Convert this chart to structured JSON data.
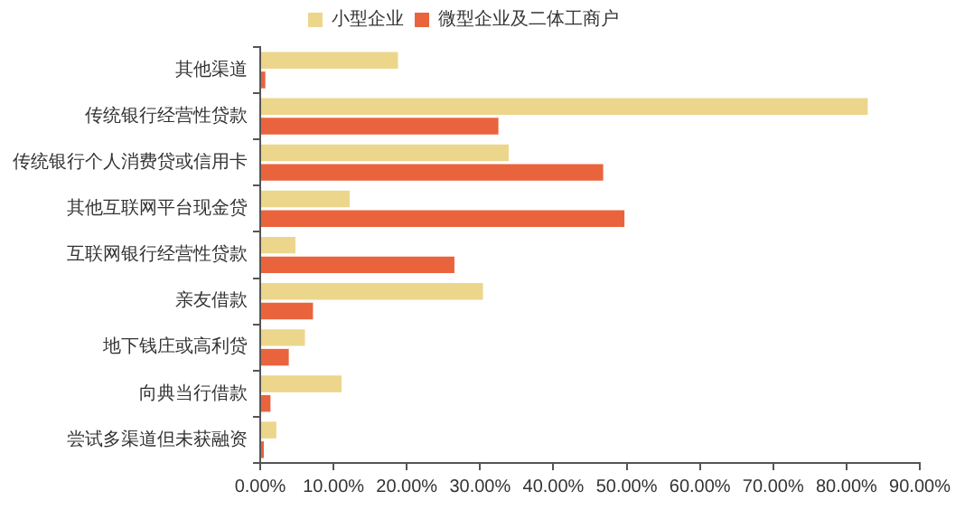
{
  "chart_data": {
    "type": "bar",
    "orientation": "horizontal",
    "categories": [
      "其他渠道",
      "传统银行经营性贷款",
      "传统银行个人消费贷或信用卡",
      "其他互联网平台现金贷",
      "互联网银行经营性贷款",
      "亲友借款",
      "地下钱庄或高利贷",
      "向典当行借款",
      "尝试多渠道但未获融资"
    ],
    "series": [
      {
        "name": "小型企业",
        "color": "#ecd68c",
        "values": [
          18.8,
          82.9,
          33.9,
          12.2,
          4.8,
          30.4,
          6.1,
          11.1,
          2.2
        ]
      },
      {
        "name": "微型企业及二体工商户",
        "color": "#e9643d",
        "values": [
          0.7,
          32.5,
          46.8,
          49.7,
          26.5,
          7.2,
          3.9,
          1.4,
          0.5
        ]
      }
    ],
    "xlim": [
      0,
      90
    ],
    "xticks": [
      {
        "value": 0,
        "label": "0.00%"
      },
      {
        "value": 10,
        "label": "10.00%"
      },
      {
        "value": 20,
        "label": "20.00%"
      },
      {
        "value": 30,
        "label": "30.00%"
      },
      {
        "value": 40,
        "label": "40.00%"
      },
      {
        "value": 50,
        "label": "50.00%"
      },
      {
        "value": 60,
        "label": "60.00%"
      },
      {
        "value": 70,
        "label": "70.00%"
      },
      {
        "value": 80,
        "label": "80.00%"
      },
      {
        "value": 90,
        "label": "90.00%"
      }
    ],
    "grid": false,
    "legend": "top"
  }
}
